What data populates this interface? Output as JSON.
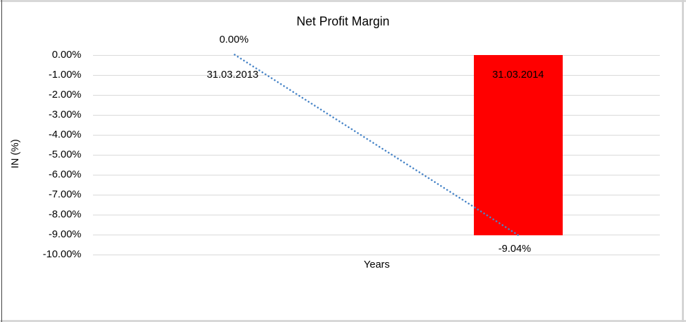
{
  "chart_data": {
    "type": "bar",
    "title": "Net Profit Margin",
    "xlabel": "Years",
    "ylabel": "IN (%)",
    "categories": [
      "31.03.2013",
      "31.03.2014"
    ],
    "series": [
      {
        "name": "Net Profit Margin",
        "values": [
          0.0,
          -9.04
        ]
      }
    ],
    "data_labels": [
      "0.00%",
      "-9.04%"
    ],
    "ytick_labels": [
      "0.00%",
      "-1.00%",
      "-2.00%",
      "-3.00%",
      "-4.00%",
      "-5.00%",
      "-6.00%",
      "-7.00%",
      "-8.00%",
      "-9.00%",
      "-10.00%"
    ],
    "ylim": [
      -10,
      0
    ],
    "grid": true,
    "legend": "none",
    "bar_color": "#FF0000",
    "gridline_color": "#D9D9D9",
    "trendline": {
      "style": "dotted",
      "color": "#4A86C8",
      "from_value": 0.0,
      "to_value": -9.04
    }
  }
}
